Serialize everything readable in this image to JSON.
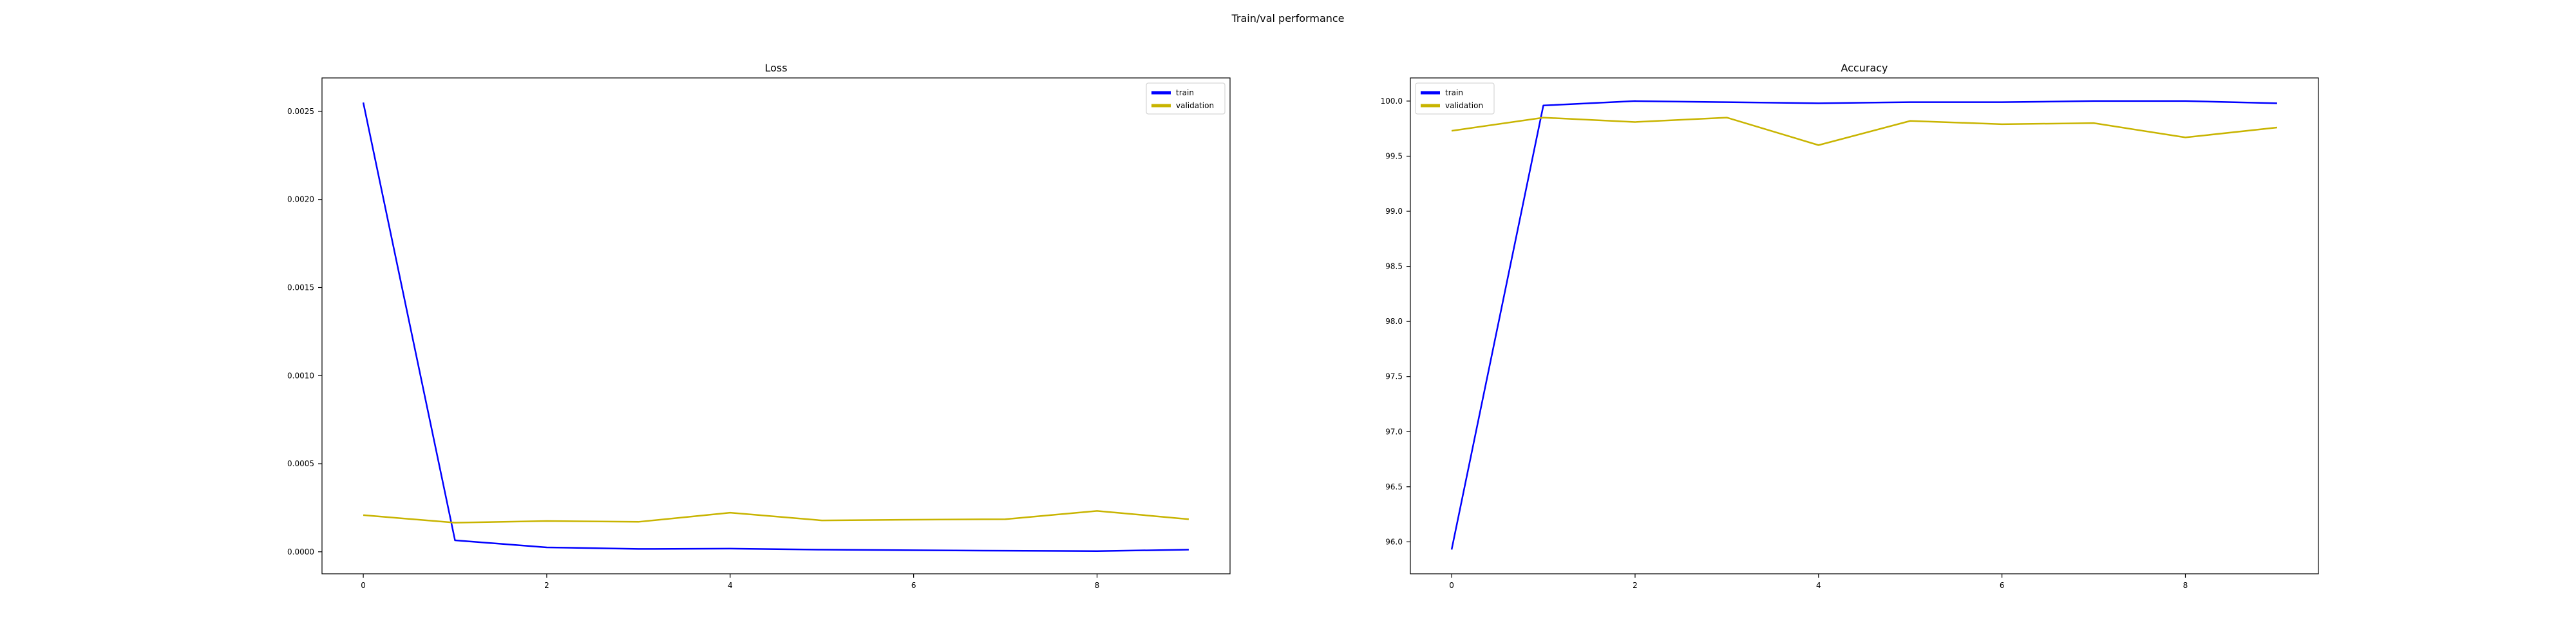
{
  "figure_title": "Train/val performance",
  "colors": {
    "train": "#0000ff",
    "validation": "#c8b400",
    "axes": "#000000",
    "background": "#ffffff"
  },
  "chart_data": [
    {
      "type": "line",
      "title": "Loss",
      "xlabel": "",
      "ylabel": "",
      "x": [
        0,
        1,
        2,
        3,
        4,
        5,
        6,
        7,
        8,
        9
      ],
      "xlim": [
        -0.45,
        9.45
      ],
      "ylim": [
        -0.000125,
        0.00269
      ],
      "xticks": [
        0,
        2,
        4,
        6,
        8
      ],
      "yticks": [
        0.0,
        0.0005,
        0.001,
        0.0015,
        0.002,
        0.0025
      ],
      "ytick_labels": [
        "0.0000",
        "0.0005",
        "0.0010",
        "0.0015",
        "0.0020",
        "0.0025"
      ],
      "grid": false,
      "legend": "upper right",
      "series": [
        {
          "name": "train",
          "color": "#0000ff",
          "values": [
            0.00255,
            6.5e-05,
            2.5e-05,
            1.6e-05,
            1.8e-05,
            1.2e-05,
            9e-06,
            6e-06,
            4e-06,
            1.2e-05
          ]
        },
        {
          "name": "validation",
          "color": "#c8b400",
          "values": [
            0.000208,
            0.000165,
            0.000175,
            0.00017,
            0.000222,
            0.000178,
            0.000182,
            0.000185,
            0.000232,
            0.000185
          ]
        }
      ]
    },
    {
      "type": "line",
      "title": "Accuracy",
      "xlabel": "",
      "ylabel": "",
      "x": [
        0,
        1,
        2,
        3,
        4,
        5,
        6,
        7,
        8,
        9
      ],
      "xlim": [
        -0.45,
        9.45
      ],
      "ylim": [
        95.71,
        100.21
      ],
      "xticks": [
        0,
        2,
        4,
        6,
        8
      ],
      "yticks": [
        96.0,
        96.5,
        97.0,
        97.5,
        98.0,
        98.5,
        99.0,
        99.5,
        100.0
      ],
      "ytick_labels": [
        "96.0",
        "96.5",
        "97.0",
        "97.5",
        "98.0",
        "98.5",
        "99.0",
        "99.5",
        "100.0"
      ],
      "grid": false,
      "legend": "upper left",
      "series": [
        {
          "name": "train",
          "color": "#0000ff",
          "values": [
            95.93,
            99.96,
            100.0,
            99.99,
            99.98,
            99.99,
            99.99,
            100.0,
            100.0,
            99.98
          ]
        },
        {
          "name": "validation",
          "color": "#c8b400",
          "values": [
            99.73,
            99.85,
            99.81,
            99.85,
            99.6,
            99.82,
            99.79,
            99.8,
            99.67,
            99.76
          ]
        }
      ]
    }
  ]
}
